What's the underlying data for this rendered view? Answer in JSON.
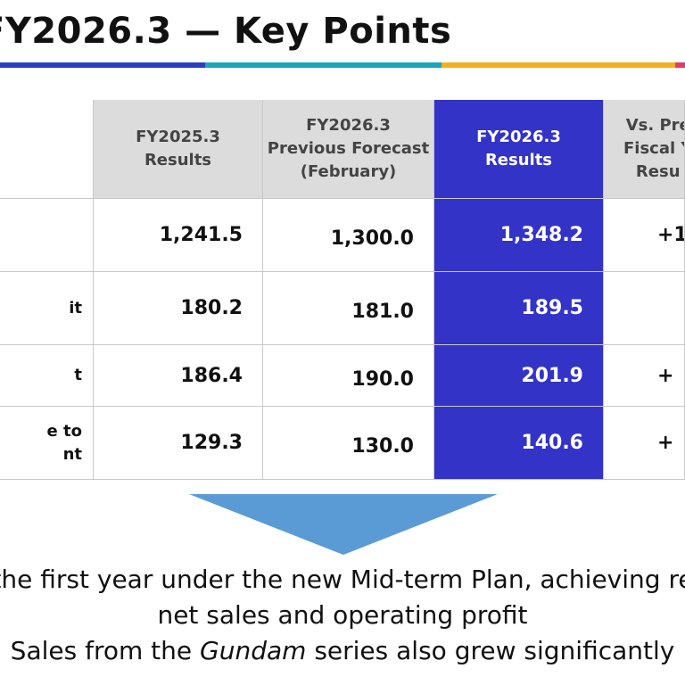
{
  "title": "FY2026.3 — Key Points",
  "table": {
    "headers": [
      "",
      "FY2025.3\nResults",
      "FY2026.3\nPrevious Forecast\n(February)",
      "FY2026.3\nResults",
      "Vs. Pre\nFiscal Y\nResu"
    ],
    "rows": [
      {
        "label": "",
        "values": [
          "1,241.5",
          "1,300.0",
          "1,348.2",
          "+1"
        ]
      },
      {
        "label": "it",
        "values": [
          "180.2",
          "181.0",
          "189.5",
          ""
        ]
      },
      {
        "label": "t",
        "values": [
          "186.4",
          "190.0",
          "201.9",
          "+"
        ]
      },
      {
        "label": "e to\nnt",
        "values": [
          "129.3",
          "130.0",
          "140.6",
          "+"
        ]
      }
    ]
  },
  "summary": {
    "line1": "the first year under the new Mid-term Plan, achieving re",
    "line2": "net sales and operating profit",
    "line3_before": "Sales from the ",
    "line3_italic": "Gundam",
    "line3_after": " series also grew significantly"
  },
  "colors": {
    "highlight_column": "#3333c8",
    "header_bg": "#dcdcdc",
    "arrow": "#5b9bd5",
    "stripe": [
      "#2a3fbf",
      "#19a7b8",
      "#f2b01e",
      "#e23a6a"
    ]
  }
}
